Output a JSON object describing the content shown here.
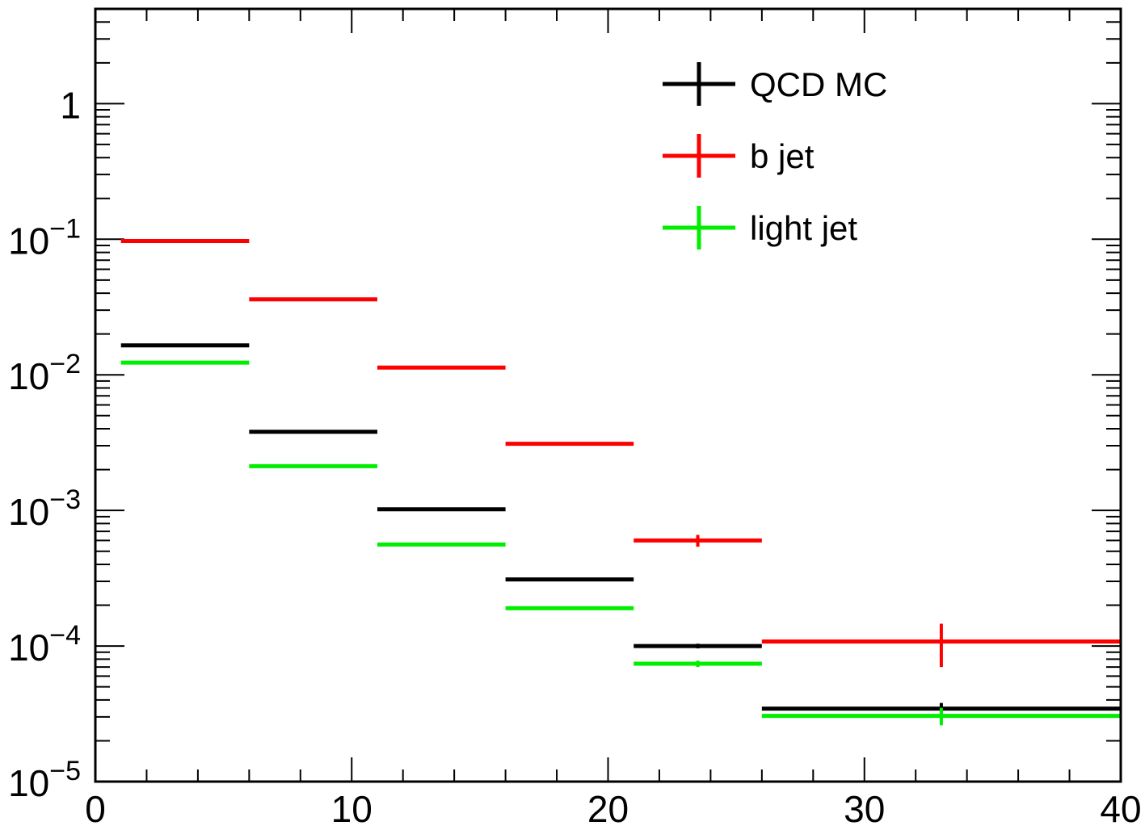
{
  "chart_data": {
    "type": "histogram",
    "title": "",
    "xlabel": "",
    "ylabel": "",
    "xlim": [
      0,
      40
    ],
    "ylim": [
      1e-05,
      5
    ],
    "log_y": true,
    "grid": false,
    "legend_position": "top-right",
    "x_ticks": [
      "0",
      "10",
      "20",
      "30",
      "40"
    ],
    "y_ticks": [
      {
        "value": 1e-05,
        "base": "10",
        "exp": "−5"
      },
      {
        "value": 0.0001,
        "base": "10",
        "exp": "−4"
      },
      {
        "value": 0.001,
        "base": "10",
        "exp": "−3"
      },
      {
        "value": 0.01,
        "base": "10",
        "exp": "−2"
      },
      {
        "value": 0.1,
        "base": "10",
        "exp": "−1"
      },
      {
        "value": 1,
        "base": "1",
        "exp": ""
      }
    ],
    "bins": [
      [
        1,
        6
      ],
      [
        6,
        11
      ],
      [
        11,
        16
      ],
      [
        16,
        21
      ],
      [
        21,
        26
      ],
      [
        26,
        40
      ]
    ],
    "series": [
      {
        "name": "QCD MC",
        "color": "#000000",
        "values": [
          0.0165,
          0.0038,
          0.00102,
          0.00031,
          0.0001,
          3.45e-05
        ],
        "errors": [
          0,
          0,
          0,
          0,
          4e-06,
          3.5e-06
        ]
      },
      {
        "name": "b jet",
        "color": "#ff0000",
        "values": [
          0.097,
          0.036,
          0.0113,
          0.0031,
          0.0006,
          0.000108
        ],
        "errors": [
          0,
          0,
          0,
          5e-05,
          6e-05,
          3.8e-05
        ]
      },
      {
        "name": "light jet",
        "color": "#00ee00",
        "values": [
          0.0123,
          0.00212,
          0.00056,
          0.00019,
          7.4e-05,
          3.05e-05
        ],
        "errors": [
          0,
          0,
          0,
          3e-06,
          4e-06,
          4.5e-06
        ]
      }
    ]
  }
}
